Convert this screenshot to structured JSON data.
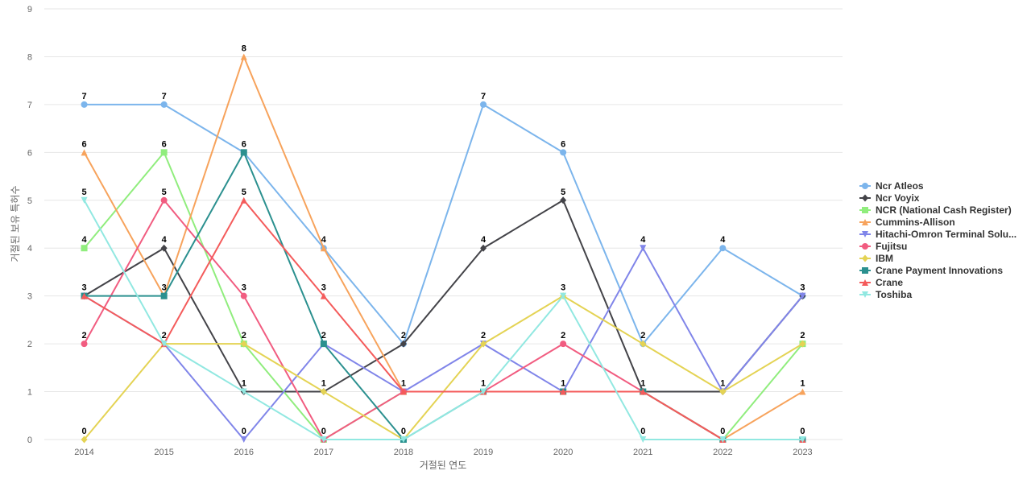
{
  "chart_data": {
    "type": "line",
    "title": "",
    "xlabel": "거절된 연도",
    "ylabel": "거절된 보유 특허수",
    "x": [
      "2014",
      "2015",
      "2016",
      "2017",
      "2018",
      "2019",
      "2020",
      "2021",
      "2022",
      "2023"
    ],
    "ylim": [
      0,
      9
    ],
    "yticks": [
      "0",
      "1",
      "2",
      "3",
      "4",
      "5",
      "6",
      "7",
      "8",
      "9"
    ],
    "grid": true,
    "legend_position": "right",
    "series": [
      {
        "name": "Ncr Atleos",
        "color": "#7cb5ec",
        "marker": "circle",
        "values": [
          7,
          7,
          6,
          4,
          2,
          7,
          6,
          2,
          4,
          3
        ]
      },
      {
        "name": "Ncr Voyix",
        "color": "#434348",
        "marker": "diamond",
        "values": [
          3,
          4,
          1,
          1,
          2,
          4,
          5,
          1,
          1,
          3
        ]
      },
      {
        "name": "NCR (National Cash Register)",
        "color": "#90ed7d",
        "marker": "square",
        "values": [
          4,
          6,
          2,
          0,
          1,
          1,
          1,
          1,
          0,
          2
        ]
      },
      {
        "name": "Cummins-Allison",
        "color": "#f7a35c",
        "marker": "triangle",
        "values": [
          6,
          3,
          8,
          4,
          1,
          1,
          1,
          1,
          0,
          1
        ]
      },
      {
        "name": "Hitachi-Omron Terminal Solu...",
        "color": "#8085e9",
        "marker": "triangle-down",
        "values": [
          3,
          2,
          0,
          2,
          1,
          2,
          1,
          4,
          1,
          3
        ]
      },
      {
        "name": "Fujitsu",
        "color": "#f15c80",
        "marker": "circle",
        "values": [
          2,
          5,
          3,
          0,
          1,
          1,
          2,
          1,
          0,
          0
        ]
      },
      {
        "name": "IBM",
        "color": "#e4d354",
        "marker": "diamond",
        "values": [
          0,
          2,
          2,
          1,
          0,
          2,
          3,
          2,
          1,
          2
        ]
      },
      {
        "name": "Crane Payment Innovations",
        "color": "#2b908f",
        "marker": "square",
        "values": [
          3,
          3,
          6,
          2,
          0,
          1,
          1,
          1,
          0,
          0
        ]
      },
      {
        "name": "Crane",
        "color": "#f45b5b",
        "marker": "triangle",
        "values": [
          3,
          2,
          5,
          3,
          1,
          1,
          1,
          1,
          0,
          0
        ]
      },
      {
        "name": "Toshiba",
        "color": "#91e8e1",
        "marker": "triangle-down",
        "values": [
          5,
          2,
          1,
          0,
          0,
          1,
          3,
          0,
          0,
          0
        ]
      }
    ],
    "data_labels": [
      {
        "x": "2014",
        "labels": [
          "7",
          "6",
          "5",
          "4",
          "3",
          "2",
          "0"
        ]
      },
      {
        "x": "2015",
        "labels": [
          "7",
          "6",
          "5",
          "4",
          "3",
          "2"
        ]
      },
      {
        "x": "2016",
        "labels": [
          "8",
          "6",
          "5",
          "3",
          "2",
          "1",
          "0"
        ]
      },
      {
        "x": "2017",
        "labels": [
          "4",
          "3",
          "2",
          "1",
          "0"
        ]
      },
      {
        "x": "2018",
        "labels": [
          "2",
          "1",
          "0"
        ]
      },
      {
        "x": "2019",
        "labels": [
          "7",
          "4",
          "2",
          "1"
        ]
      },
      {
        "x": "2020",
        "labels": [
          "6",
          "5",
          "3",
          "2",
          "1"
        ]
      },
      {
        "x": "2021",
        "labels": [
          "4",
          "2",
          "1",
          "0"
        ]
      },
      {
        "x": "2022",
        "labels": [
          "4",
          "1",
          "0"
        ]
      },
      {
        "x": "2023",
        "labels": [
          "3",
          "2",
          "1",
          "0"
        ]
      }
    ]
  }
}
